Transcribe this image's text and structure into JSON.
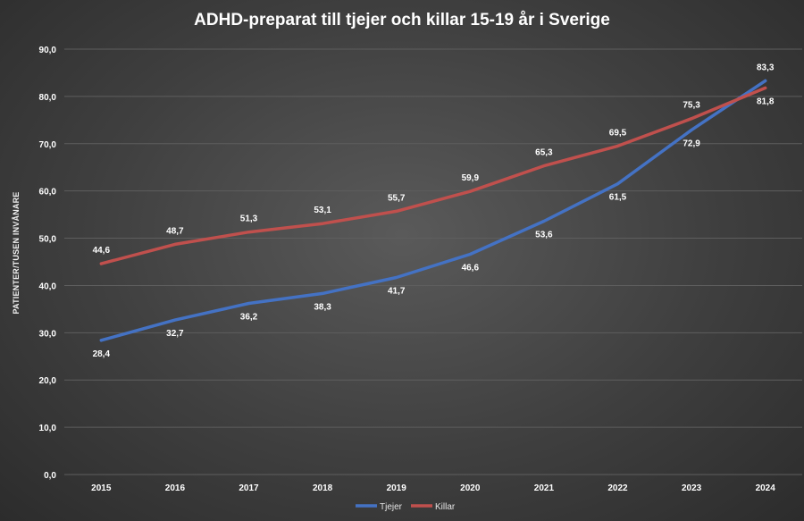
{
  "chart_data": {
    "type": "line",
    "title": "ADHD-preparat till tjejer och killar 15-19 år i Sverige",
    "ylabel": "PATIENTER/TUSEN INVÅNARE",
    "ylim": [
      0,
      90
    ],
    "yticks": [
      "0,0",
      "10,0",
      "20,0",
      "30,0",
      "40,0",
      "50,0",
      "60,0",
      "70,0",
      "80,0",
      "90,0"
    ],
    "categories": [
      "2015",
      "2016",
      "2017",
      "2018",
      "2019",
      "2020",
      "2021",
      "2022",
      "2023",
      "2024"
    ],
    "grid": true,
    "legend_position": "bottom",
    "series": [
      {
        "name": "Tjejer",
        "color": "#4472c4",
        "values": [
          28.4,
          32.7,
          36.2,
          38.3,
          41.7,
          46.6,
          53.6,
          61.5,
          72.9,
          83.3
        ],
        "labels": [
          "28,4",
          "32,7",
          "36,2",
          "38,3",
          "41,7",
          "46,6",
          "53,6",
          "61,5",
          "72,9",
          "83,3"
        ]
      },
      {
        "name": "Killar",
        "color": "#c0504d",
        "values": [
          44.6,
          48.7,
          51.3,
          53.1,
          55.7,
          59.9,
          65.3,
          69.5,
          75.3,
          81.8
        ],
        "labels": [
          "44,6",
          "48,7",
          "51,3",
          "53,1",
          "55,7",
          "59,9",
          "65,3",
          "69,5",
          "75,3",
          "81,8"
        ]
      }
    ]
  }
}
